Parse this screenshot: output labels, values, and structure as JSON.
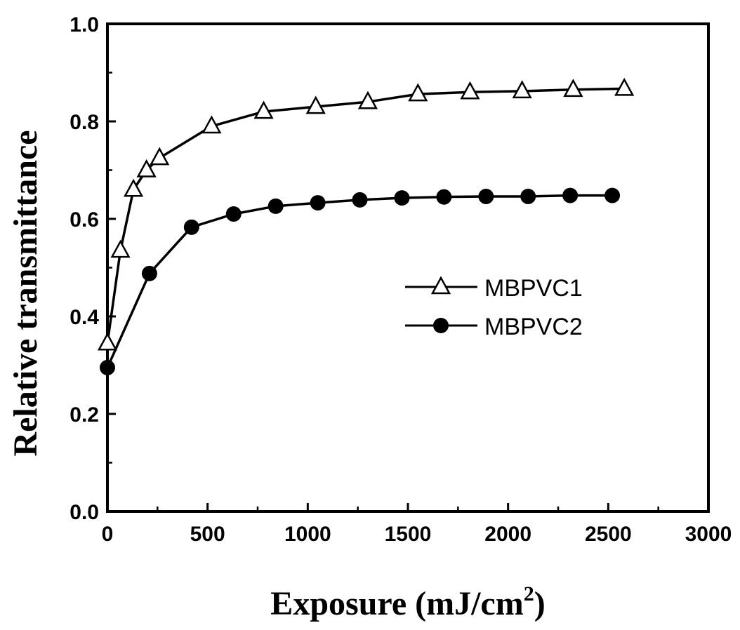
{
  "chart_data": {
    "type": "line",
    "xlabel": "Exposure (mJ/cm",
    "xlabel_superscript": "2",
    "xlabel_close": ")",
    "ylabel": "Relative transmittance",
    "xlim": [
      0,
      3000
    ],
    "ylim": [
      0.0,
      1.0
    ],
    "xticks": [
      "0",
      "500",
      "1000",
      "1500",
      "2000",
      "2500",
      "3000"
    ],
    "yticks": [
      "0.0",
      "0.2",
      "0.4",
      "0.6",
      "0.8",
      "1.0"
    ],
    "grid": false,
    "legend_position": "center-right",
    "series": [
      {
        "name": "MBPVC1",
        "marker": "open-triangle",
        "color": "#000000",
        "x": [
          0,
          65,
          130,
          195,
          260,
          520,
          780,
          1040,
          1300,
          1550,
          1810,
          2070,
          2325,
          2580
        ],
        "y": [
          0.345,
          0.535,
          0.66,
          0.7,
          0.725,
          0.79,
          0.82,
          0.83,
          0.84,
          0.856,
          0.86,
          0.862,
          0.865,
          0.867
        ]
      },
      {
        "name": "MBPVC2",
        "marker": "filled-circle",
        "color": "#000000",
        "x": [
          0,
          210,
          420,
          630,
          840,
          1050,
          1260,
          1470,
          1680,
          1890,
          2100,
          2310,
          2520
        ],
        "y": [
          0.295,
          0.488,
          0.583,
          0.61,
          0.626,
          0.633,
          0.639,
          0.643,
          0.645,
          0.646,
          0.646,
          0.648,
          0.648
        ]
      }
    ]
  }
}
